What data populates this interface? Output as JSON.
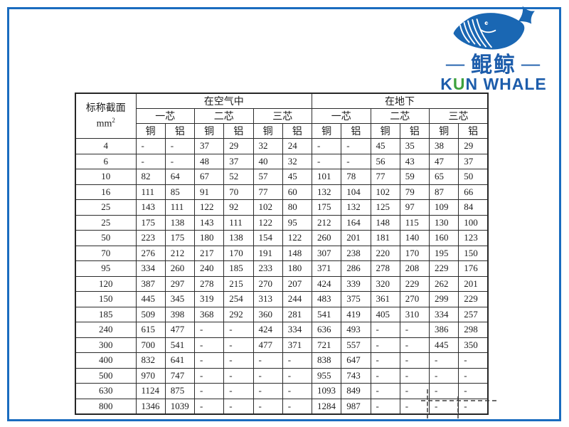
{
  "frame_color": "#1a6cbf",
  "logo": {
    "left_dash": "—",
    "chinese_name": "鲲鲸",
    "right_dash": "—",
    "english_name": {
      "prefix": "K",
      "accent": "U",
      "suffix": "N WHALE"
    },
    "colors": {
      "blue": "#1a67b3",
      "green": "#3ea23e"
    }
  },
  "table": {
    "corner": {
      "line1": "标称截面",
      "line2": "mm",
      "sup": "2"
    },
    "groups": [
      "在空气中",
      "在地下"
    ],
    "subgroups": [
      "一芯",
      "二芯",
      "三芯"
    ],
    "materials": [
      "铜",
      "铝"
    ],
    "rows": [
      {
        "size": "4",
        "values": [
          "-",
          "-",
          "37",
          "29",
          "32",
          "24",
          "-",
          "-",
          "45",
          "35",
          "38",
          "29"
        ]
      },
      {
        "size": "6",
        "values": [
          "-",
          "-",
          "48",
          "37",
          "40",
          "32",
          "-",
          "-",
          "56",
          "43",
          "47",
          "37"
        ]
      },
      {
        "size": "10",
        "values": [
          "82",
          "64",
          "67",
          "52",
          "57",
          "45",
          "101",
          "78",
          "77",
          "59",
          "65",
          "50"
        ]
      },
      {
        "size": "16",
        "values": [
          "111",
          "85",
          "91",
          "70",
          "77",
          "60",
          "132",
          "104",
          "102",
          "79",
          "87",
          "66"
        ]
      },
      {
        "size": "25",
        "values": [
          "143",
          "111",
          "122",
          "92",
          "102",
          "80",
          "175",
          "132",
          "125",
          "97",
          "109",
          "84"
        ]
      },
      {
        "size": "25",
        "values": [
          "175",
          "138",
          "143",
          "111",
          "122",
          "95",
          "212",
          "164",
          "148",
          "115",
          "130",
          "100"
        ]
      },
      {
        "size": "50",
        "values": [
          "223",
          "175",
          "180",
          "138",
          "154",
          "122",
          "260",
          "201",
          "181",
          "140",
          "160",
          "123"
        ]
      },
      {
        "size": "70",
        "values": [
          "276",
          "212",
          "217",
          "170",
          "191",
          "148",
          "307",
          "238",
          "220",
          "170",
          "195",
          "150"
        ]
      },
      {
        "size": "95",
        "values": [
          "334",
          "260",
          "240",
          "185",
          "233",
          "180",
          "371",
          "286",
          "278",
          "208",
          "229",
          "176"
        ]
      },
      {
        "size": "120",
        "values": [
          "387",
          "297",
          "278",
          "215",
          "270",
          "207",
          "424",
          "339",
          "320",
          "229",
          "262",
          "201"
        ]
      },
      {
        "size": "150",
        "values": [
          "445",
          "345",
          "319",
          "254",
          "313",
          "244",
          "483",
          "375",
          "361",
          "270",
          "299",
          "229"
        ]
      },
      {
        "size": "185",
        "values": [
          "509",
          "398",
          "368",
          "292",
          "360",
          "281",
          "541",
          "419",
          "405",
          "310",
          "334",
          "257"
        ]
      },
      {
        "size": "240",
        "values": [
          "615",
          "477",
          "-",
          "-",
          "424",
          "334",
          "636",
          "493",
          "-",
          "-",
          "386",
          "298"
        ]
      },
      {
        "size": "300",
        "values": [
          "700",
          "541",
          "-",
          "-",
          "477",
          "371",
          "721",
          "557",
          "-",
          "-",
          "445",
          "350"
        ]
      },
      {
        "size": "400",
        "values": [
          "832",
          "641",
          "-",
          "-",
          "-",
          "-",
          "838",
          "647",
          "-",
          "-",
          "-",
          "-"
        ]
      },
      {
        "size": "500",
        "values": [
          "970",
          "747",
          "-",
          "-",
          "-",
          "-",
          "955",
          "743",
          "-",
          "-",
          "-",
          "-"
        ]
      },
      {
        "size": "630",
        "values": [
          "1124",
          "875",
          "-",
          "-",
          "-",
          "-",
          "1093",
          "849",
          "-",
          "-",
          "-",
          "-"
        ]
      },
      {
        "size": "800",
        "values": [
          "1346",
          "1039",
          "-",
          "-",
          "-",
          "-",
          "1284",
          "987",
          "-",
          "-",
          "-",
          "-"
        ]
      }
    ]
  }
}
